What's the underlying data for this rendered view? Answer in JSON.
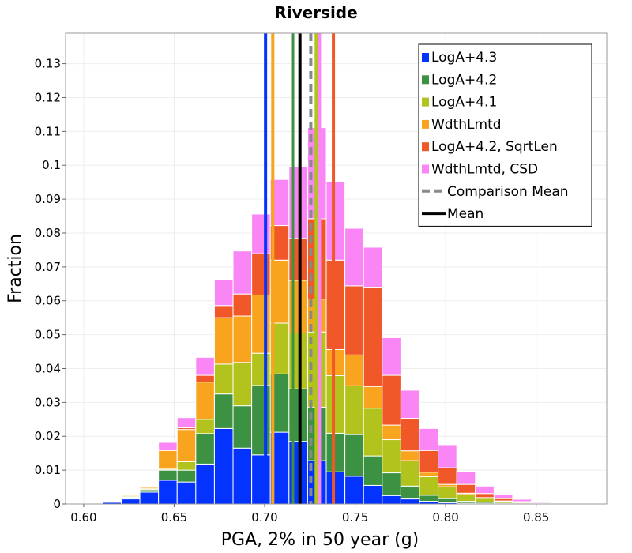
{
  "chart_data": {
    "type": "bar",
    "stacked": true,
    "title": "Riverside",
    "xlabel": "PGA, 2% in 50 year (g)",
    "ylabel": "Fraction",
    "xlim": [
      0.59,
      0.889
    ],
    "ylim": [
      0,
      0.139
    ],
    "xticks": [
      0.6,
      0.65,
      0.7,
      0.75,
      0.8,
      0.85
    ],
    "xtick_labels": [
      "0.60",
      "0.65",
      "0.70",
      "0.75",
      "0.80",
      "0.85"
    ],
    "yticks": [
      0,
      0.01,
      0.02,
      0.03,
      0.04,
      0.05,
      0.06,
      0.07,
      0.08,
      0.09,
      0.1,
      0.11,
      0.12,
      0.13
    ],
    "ytick_labels": [
      "0",
      "0.01",
      "0.02",
      "0.03",
      "0.04",
      "0.05",
      "0.06",
      "0.07",
      "0.08",
      "0.09",
      "0.1",
      "0.11",
      "0.12",
      "0.13"
    ],
    "grid": true,
    "legend_position": "top-right",
    "bin_width": 0.0103,
    "x": [
      0.6053,
      0.6156,
      0.6259,
      0.6362,
      0.6465,
      0.6568,
      0.6671,
      0.6774,
      0.6877,
      0.698,
      0.7083,
      0.7186,
      0.7289,
      0.7392,
      0.7495,
      0.7598,
      0.7701,
      0.7804,
      0.7907,
      0.801,
      0.8113,
      0.8216,
      0.8319,
      0.8422,
      0.8525,
      0.8628,
      0.8731
    ],
    "series": [
      {
        "name": "LogA+4.3",
        "color": "#0433ff",
        "values": [
          0.0001,
          0.0005,
          0.0015,
          0.0035,
          0.007,
          0.0065,
          0.0118,
          0.0223,
          0.0165,
          0.0145,
          0.0212,
          0.0185,
          0.0128,
          0.0095,
          0.0082,
          0.0055,
          0.0025,
          0.0015,
          0.0008,
          0.0004,
          0.0002,
          0.0001,
          0.0,
          0.0,
          0.0,
          0.0,
          0.0
        ]
      },
      {
        "name": "LogA+4.2",
        "color": "#3c9143",
        "values": [
          0.0,
          0.0002,
          0.0005,
          0.0007,
          0.003,
          0.0035,
          0.009,
          0.0102,
          0.0125,
          0.0205,
          0.0172,
          0.0155,
          0.0158,
          0.0114,
          0.0123,
          0.0087,
          0.0067,
          0.0038,
          0.0018,
          0.0012,
          0.0006,
          0.0004,
          0.0002,
          0.0001,
          0.0,
          0.0,
          0.0
        ]
      },
      {
        "name": "LogA+4.1",
        "color": "#b3c31d",
        "values": [
          0.0,
          0.0001,
          0.0003,
          0.0003,
          0.0003,
          0.0025,
          0.0042,
          0.0088,
          0.0128,
          0.0095,
          0.015,
          0.0165,
          0.0222,
          0.017,
          0.0144,
          0.0141,
          0.0098,
          0.0075,
          0.0055,
          0.0035,
          0.002,
          0.0012,
          0.0006,
          0.0003,
          0.0001,
          0.0,
          0.0
        ]
      },
      {
        "name": "WdthLmtd",
        "color": "#f9a41f",
        "values": [
          0.0,
          0.0,
          0.0003,
          0.0004,
          0.0055,
          0.0095,
          0.011,
          0.0137,
          0.0137,
          0.0172,
          0.0186,
          0.0155,
          0.0097,
          0.0077,
          0.0091,
          0.0064,
          0.0043,
          0.0029,
          0.0013,
          0.0007,
          0.0004,
          0.0002,
          0.0001,
          0.0,
          0.0,
          0.0,
          0.0
        ]
      },
      {
        "name": "LogA+4.2, SqrtLen",
        "color": "#f15829",
        "values": [
          0.0,
          0.0,
          0.0,
          0.0,
          0.0,
          0.0005,
          0.002,
          0.0036,
          0.0065,
          0.0122,
          0.0102,
          0.0124,
          0.0237,
          0.0264,
          0.0204,
          0.0293,
          0.0147,
          0.0096,
          0.0064,
          0.0049,
          0.0026,
          0.0012,
          0.0007,
          0.0003,
          0.0002,
          0.0001,
          0.0
        ]
      },
      {
        "name": "WdthLmtd, CSD",
        "color": "#f986f4",
        "values": [
          0.0,
          0.0001,
          0.0002,
          0.0003,
          0.0024,
          0.003,
          0.0053,
          0.0076,
          0.0127,
          0.0117,
          0.0136,
          0.0213,
          0.0269,
          0.0232,
          0.017,
          0.0118,
          0.0111,
          0.0083,
          0.0065,
          0.0068,
          0.0038,
          0.0022,
          0.0013,
          0.0007,
          0.0004,
          0.0002,
          0.0001
        ]
      }
    ],
    "vertical_lines": [
      {
        "name": "LogA+4.3 mean",
        "x": 0.7005,
        "color": "#0433ff",
        "style": "solid"
      },
      {
        "name": "WdthLmtd mean",
        "x": 0.7045,
        "color": "#f9a41f",
        "style": "solid"
      },
      {
        "name": "LogA+4.2 mean",
        "x": 0.7155,
        "color": "#3c9143",
        "style": "solid"
      },
      {
        "name": "LogA+4.1 mean",
        "x": 0.7285,
        "color": "#b3c31d",
        "style": "solid"
      },
      {
        "name": "WdthLmtd, CSD mean",
        "x": 0.7303,
        "color": "#f986f4",
        "style": "solid"
      },
      {
        "name": "LogA+4.2, SqrtLen mean",
        "x": 0.738,
        "color": "#f15829",
        "style": "solid"
      },
      {
        "name": "Comparison Mean",
        "x": 0.7255,
        "color": "#888888",
        "style": "dashed"
      },
      {
        "name": "Mean",
        "x": 0.7195,
        "color": "#000000",
        "style": "solid"
      }
    ],
    "legend": [
      {
        "label": "LogA+4.3",
        "color": "#0433ff",
        "kind": "box"
      },
      {
        "label": "LogA+4.2",
        "color": "#3c9143",
        "kind": "box"
      },
      {
        "label": "LogA+4.1",
        "color": "#b3c31d",
        "kind": "box"
      },
      {
        "label": "WdthLmtd",
        "color": "#f9a41f",
        "kind": "box"
      },
      {
        "label": "LogA+4.2, SqrtLen",
        "color": "#f15829",
        "kind": "box"
      },
      {
        "label": "WdthLmtd, CSD",
        "color": "#f986f4",
        "kind": "box"
      },
      {
        "label": "Comparison Mean",
        "color": "#888888",
        "kind": "dashed"
      },
      {
        "label": "Mean",
        "color": "#000000",
        "kind": "line"
      }
    ]
  }
}
